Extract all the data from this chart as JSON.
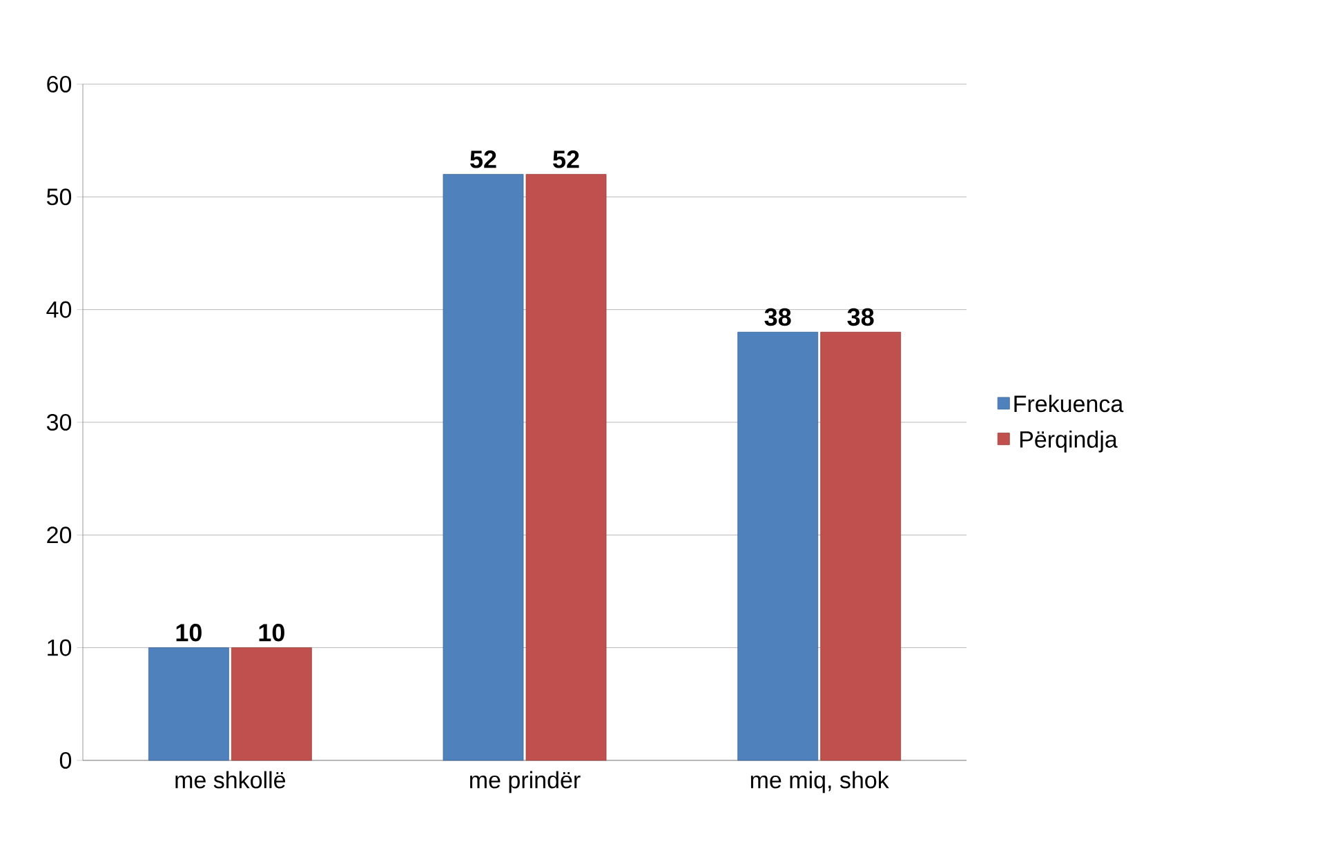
{
  "chart_data": {
    "type": "bar",
    "categories": [
      "me shkollë",
      "me prindër",
      "me miq, shok"
    ],
    "series": [
      {
        "name": "Frekuenca",
        "color": "#4f81bd",
        "values": [
          10,
          52,
          38
        ]
      },
      {
        "name": "Përqindja",
        "color": "#c0504d",
        "values": [
          10,
          52,
          38
        ]
      }
    ],
    "ylim": [
      0,
      60
    ],
    "yticks": [
      0,
      10,
      20,
      30,
      40,
      50,
      60
    ],
    "grid": "y",
    "legend": "right",
    "data_labels": true
  }
}
